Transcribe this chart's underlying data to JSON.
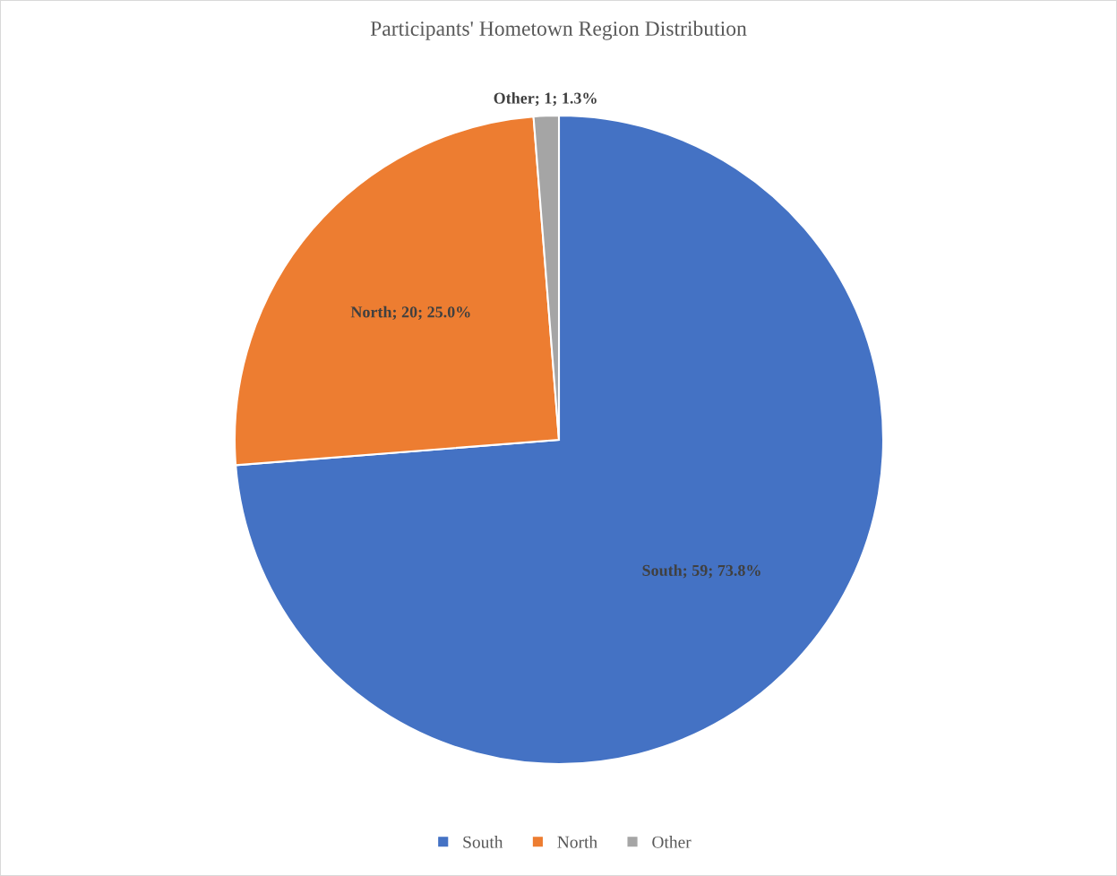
{
  "chart_data": {
    "type": "pie",
    "title": "Participants' Hometown Region Distribution",
    "categories": [
      "South",
      "North",
      "Other"
    ],
    "values": [
      59,
      20,
      1
    ],
    "colors": [
      "#4472c4",
      "#ed7d31",
      "#a5a5a5"
    ],
    "value_labels": [
      "South; 59; 73.8%",
      "North; 20; 25.0%",
      "Other; 1; 1.3%"
    ],
    "legend": "bottom"
  }
}
